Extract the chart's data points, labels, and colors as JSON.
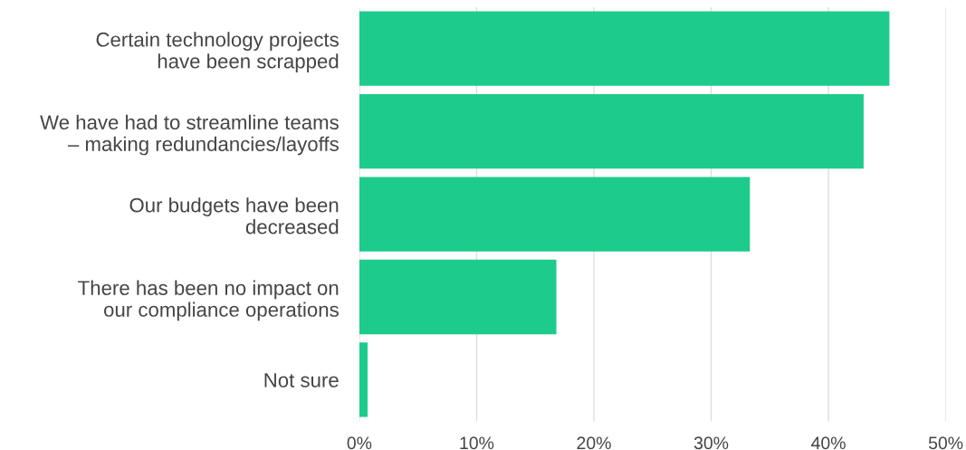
{
  "chart_data": {
    "type": "bar",
    "orientation": "horizontal",
    "categories": [
      "Certain technology projects\nhave been scrapped",
      "We have had to streamline teams\n– making redundancies/layoffs",
      "Our budgets have been\ndecreased",
      "There has been no impact on\nour compliance operations",
      "Not sure"
    ],
    "values": [
      45.2,
      43.0,
      33.3,
      16.8,
      0.7
    ],
    "color": "#1dcb8d",
    "xlim": [
      0,
      50
    ],
    "xticks": [
      {
        "value": 0,
        "label": "0%"
      },
      {
        "value": 10,
        "label": "10%"
      },
      {
        "value": 20,
        "label": "20%"
      },
      {
        "value": 30,
        "label": "30%"
      },
      {
        "value": 40,
        "label": "40%"
      },
      {
        "value": 50,
        "label": "50%"
      }
    ],
    "grid": "x"
  }
}
